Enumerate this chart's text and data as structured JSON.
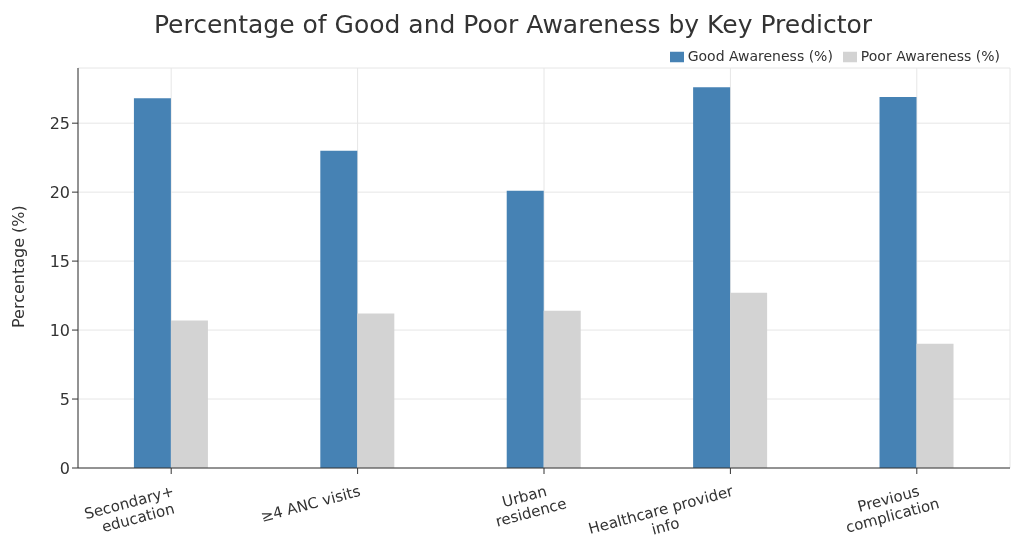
{
  "chart_data": {
    "type": "bar",
    "title": "Percentage of Good and Poor Awareness by Key Predictor",
    "ylabel": "Percentage (%)",
    "categories": [
      "Secondary+\neducation",
      "≥4 ANC visits",
      "Urban\nresidence",
      "Healthcare provider\ninfo",
      "Previous\ncomplication"
    ],
    "series": [
      {
        "name": "Good Awareness (%)",
        "color": "#4682b4",
        "values": [
          26.8,
          23.0,
          20.1,
          27.6,
          26.9
        ]
      },
      {
        "name": "Poor Awareness (%)",
        "color": "#d3d3d3",
        "values": [
          10.7,
          11.2,
          11.4,
          12.7,
          9.0
        ]
      }
    ],
    "ylim": [
      0,
      29
    ],
    "yticks": [
      0,
      5,
      10,
      15,
      20,
      25
    ],
    "grid": true,
    "legend": "top right"
  }
}
